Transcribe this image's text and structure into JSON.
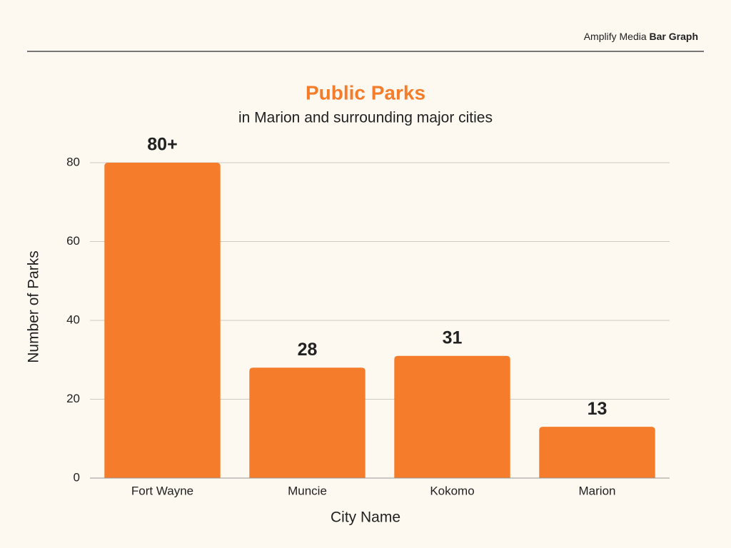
{
  "header": {
    "brand": "Amplify Media",
    "label": "Bar Graph"
  },
  "chart_data": {
    "type": "bar",
    "title": "Public Parks",
    "subtitle": "in Marion and surrounding major cities",
    "x_label": "City Name",
    "y_label": "Number of Parks",
    "categories": [
      "Fort Wayne",
      "Muncie",
      "Kokomo",
      "Marion"
    ],
    "values": [
      80,
      28,
      31,
      13
    ],
    "value_labels": [
      "80+",
      "28",
      "31",
      "13"
    ],
    "color": "#f47c2a",
    "ylim": [
      0,
      80
    ],
    "yticks": [
      0,
      20,
      40,
      60,
      80
    ],
    "grid": true
  }
}
